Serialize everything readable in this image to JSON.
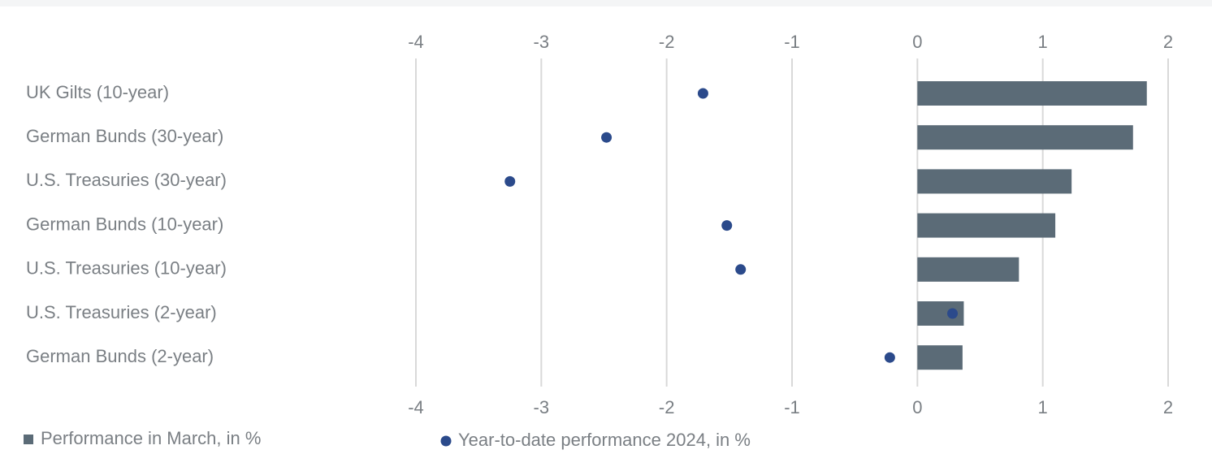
{
  "chart_data": {
    "type": "bar",
    "orientation": "horizontal",
    "categories": [
      "UK Gilts (10-year)",
      "German Bunds (30-year)",
      "U.S. Treasuries (30-year)",
      "German Bunds (10-year)",
      "U.S. Treasuries (10-year)",
      "U.S. Treasuries (2-year)",
      "German Bunds (2-year)"
    ],
    "series": [
      {
        "name": "Performance in March, in %",
        "type": "bar",
        "color": "#5b6b77",
        "values": [
          1.83,
          1.72,
          1.23,
          1.1,
          0.81,
          0.37,
          0.36
        ]
      },
      {
        "name": "Year-to-date performance 2024, in %",
        "type": "scatter",
        "color": "#2b4a8b",
        "values": [
          -1.71,
          -2.48,
          -3.25,
          -1.52,
          -1.41,
          0.28,
          -0.22
        ]
      }
    ],
    "xlim": [
      -4,
      2
    ],
    "xticks": [
      -4,
      -3,
      -2,
      -1,
      0,
      1,
      2
    ],
    "grid": true,
    "legend": "bottom"
  }
}
